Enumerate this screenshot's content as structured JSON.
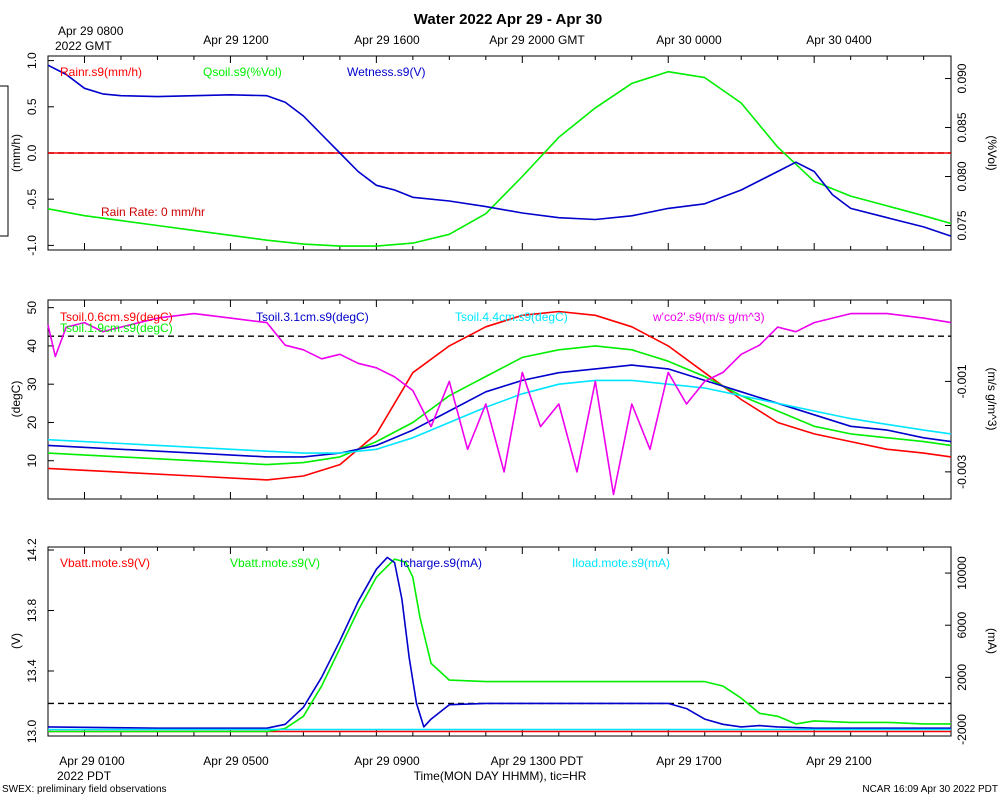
{
  "header": {
    "title": "Water 2022 Apr 29 - Apr 30",
    "gmt_tick_first_line1": "Apr 29 0800",
    "gmt_tick_first_line2": "2022 GMT",
    "gmt_ticks": [
      "Apr 29 1200",
      "Apr 29 1600",
      "Apr 29 2000 GMT",
      "Apr 30 0000",
      "Apr 30 0400"
    ]
  },
  "footer": {
    "left": "SWEX: preliminary field observations",
    "right": "NCAR 16:09 Apr 30 2022 PDT",
    "xlabel": "Time(MON DAY HHMM), tic=HR",
    "pdt_ticks": [
      "Apr 29 0100",
      "Apr 29 0500",
      "Apr 29 0900",
      "Apr 29 1300 PDT",
      "Apr 29 1700",
      "Apr 29 2100"
    ],
    "year_label": "2022 PDT"
  },
  "colors": {
    "red": "#ff0000",
    "green": "#00ee00",
    "blue": "#0000cc",
    "cyan": "#00e5ff",
    "magenta": "#ee00ee"
  },
  "chart_data": [
    {
      "type": "line",
      "panel": "water",
      "title": "Water 2022 Apr 29 - Apr 30",
      "x_unit": "hours since Apr 29 0000 PDT",
      "xlim": [
        0.0,
        24.75
      ],
      "left_axis": {
        "label": "(mm/h)",
        "ylim": [
          -1.05,
          1.05
        ],
        "ticks": [
          -1.0,
          -0.5,
          0.0,
          0.5,
          1.0
        ]
      },
      "right_axis": {
        "label": "(%Vol)",
        "ylim": [
          0.0725,
          0.0923
        ],
        "ticks": [
          0.075,
          0.08,
          0.085,
          0.09
        ]
      },
      "annotation": "Rain Rate: 0 mm/hr",
      "reference_line_left": 0.0,
      "series": [
        {
          "name": "Rainr.s9(mm/h)",
          "axis": "left",
          "color": "#ff0000",
          "x": [
            0.0,
            24.75
          ],
          "y": [
            0.0,
            0.0
          ]
        },
        {
          "name": "Qsoil.s9(%Vol)",
          "axis": "right",
          "color": "#00ee00",
          "x": [
            0.0,
            1,
            2,
            3,
            4,
            5,
            6,
            7,
            8,
            9,
            10,
            11,
            12,
            13,
            14,
            15,
            16,
            17,
            18,
            19,
            20,
            21,
            22,
            23,
            24,
            24.75
          ],
          "y": [
            0.0767,
            0.076,
            0.0755,
            0.075,
            0.0745,
            0.074,
            0.0735,
            0.0731,
            0.0729,
            0.0729,
            0.0732,
            0.0741,
            0.0762,
            0.08,
            0.084,
            0.087,
            0.0895,
            0.0907,
            0.0901,
            0.0875,
            0.083,
            0.0795,
            0.078,
            0.077,
            0.076,
            0.0752
          ]
        },
        {
          "name": "Wetness.s9(V)",
          "axis": "left",
          "color": "#0000cc",
          "x": [
            0.0,
            0.5,
            1,
            1.5,
            2,
            3,
            4,
            5,
            6,
            6.5,
            7,
            7.5,
            8,
            8.5,
            9,
            9.5,
            10,
            11,
            12,
            13,
            14,
            15,
            16,
            17,
            18,
            19,
            20,
            20.5,
            21,
            21.5,
            22,
            23,
            24,
            24.75
          ],
          "y": [
            0.95,
            0.85,
            0.7,
            0.64,
            0.62,
            0.61,
            0.62,
            0.63,
            0.62,
            0.55,
            0.4,
            0.2,
            0.0,
            -0.2,
            -0.35,
            -0.4,
            -0.48,
            -0.52,
            -0.58,
            -0.65,
            -0.7,
            -0.72,
            -0.68,
            -0.6,
            -0.55,
            -0.4,
            -0.2,
            -0.1,
            -0.2,
            -0.45,
            -0.6,
            -0.7,
            -0.8,
            -0.9
          ]
        }
      ]
    },
    {
      "type": "line",
      "panel": "soil temperature",
      "x_unit": "hours since Apr 29 0000 PDT",
      "xlim": [
        0.0,
        24.75
      ],
      "left_axis": {
        "label": "(degC)",
        "ylim": [
          0,
          52
        ],
        "ticks": [
          10,
          20,
          30,
          40,
          50
        ]
      },
      "right_axis": {
        "label": "(m/s g/m^3)",
        "ylim": [
          -0.0036,
          0.0008
        ],
        "ticks": [
          -0.003,
          -0.001
        ]
      },
      "reference_line_right": 0.0,
      "series": [
        {
          "name": "Tsoil.0.6cm.s9(degC)",
          "axis": "left",
          "color": "#ff0000",
          "x": [
            0.0,
            2,
            4,
            6,
            7,
            8,
            9,
            9.5,
            10,
            11,
            12,
            13,
            14,
            15,
            16,
            17,
            18,
            19,
            20,
            21,
            22,
            23,
            24,
            24.75
          ],
          "y": [
            8,
            7,
            6,
            5,
            6,
            9,
            17,
            25,
            33,
            40,
            45,
            48,
            49,
            48,
            45,
            40,
            33,
            26,
            20,
            17,
            15,
            13,
            12,
            11
          ]
        },
        {
          "name": "Tsoil.1.9cm.s9(degC)",
          "axis": "left",
          "color": "#00ee00",
          "x": [
            0.0,
            2,
            4,
            6,
            7,
            8,
            9,
            10,
            11,
            12,
            13,
            14,
            15,
            16,
            17,
            18,
            19,
            20,
            21,
            22,
            23,
            24,
            24.75
          ],
          "y": [
            12,
            11,
            10,
            9,
            9.5,
            11,
            15,
            20,
            27,
            32,
            37,
            39,
            40,
            39,
            36,
            32,
            27,
            23,
            19,
            17,
            16,
            15,
            14
          ]
        },
        {
          "name": "Tsoil.3.1cm.s9(degC)",
          "axis": "left",
          "color": "#0000cc",
          "x": [
            0.0,
            2,
            4,
            6,
            7,
            8,
            9,
            10,
            11,
            12,
            13,
            14,
            15,
            16,
            17,
            18,
            19,
            20,
            21,
            22,
            23,
            24,
            24.75
          ],
          "y": [
            14,
            13,
            12,
            11,
            11,
            12,
            14,
            18,
            23,
            28,
            31,
            33,
            34,
            35,
            34,
            31,
            28,
            25,
            22,
            19,
            18,
            16,
            15
          ]
        },
        {
          "name": "Tsoil.4.4cm.s9(degC)",
          "axis": "left",
          "color": "#00e5ff",
          "x": [
            0.0,
            2,
            4,
            6,
            7,
            8,
            9,
            10,
            11,
            12,
            13,
            14,
            15,
            16,
            17,
            18,
            19,
            20,
            21,
            22,
            23,
            24,
            24.75
          ],
          "y": [
            15.5,
            14.5,
            13.5,
            12.5,
            12,
            12,
            13,
            16,
            20,
            24,
            27.5,
            30,
            31,
            31,
            30,
            29,
            27,
            25,
            23,
            21,
            19.5,
            18,
            17
          ]
        },
        {
          "name": "w'co2'.s9(m/s g/m^3)",
          "axis": "right",
          "color": "#ee00ee",
          "x": [
            0.0,
            0.2,
            0.5,
            1,
            1.5,
            2,
            3,
            4,
            5,
            6,
            6.5,
            7,
            7.5,
            8,
            8.5,
            9,
            9.5,
            10,
            10.5,
            11,
            11.5,
            12,
            12.5,
            13,
            13.5,
            14,
            14.5,
            15,
            15.5,
            16,
            16.5,
            17,
            17.5,
            18,
            18.5,
            19,
            19.5,
            20,
            20.5,
            21,
            22,
            23,
            24,
            24.75
          ],
          "y": [
            0.00025,
            -0.00045,
            0.0002,
            0.0003,
            0.0001,
            0.0002,
            0.0004,
            0.0005,
            0.0004,
            0.0003,
            -0.0002,
            -0.0003,
            -0.0005,
            -0.0004,
            -0.0006,
            -0.0007,
            -0.0009,
            -0.0012,
            -0.002,
            -0.001,
            -0.0025,
            -0.0015,
            -0.003,
            -0.0008,
            -0.002,
            -0.0015,
            -0.003,
            -0.001,
            -0.0035,
            -0.0015,
            -0.0025,
            -0.0008,
            -0.0015,
            -0.001,
            -0.0008,
            -0.0004,
            -0.0002,
            0.0002,
            0.0001,
            0.0003,
            0.0005,
            0.0005,
            0.0004,
            0.0003
          ]
        }
      ]
    },
    {
      "type": "line",
      "panel": "mote power",
      "x_unit": "hours since Apr 29 0000 PDT",
      "xlim": [
        0.0,
        24.75
      ],
      "xlabel": "Time(MON DAY HHMM), tic=HR",
      "left_axis": {
        "label": "(V)",
        "ylim": [
          12.97,
          14.22
        ],
        "ticks": [
          13.0,
          13.4,
          13.8,
          14.2
        ]
      },
      "right_axis": {
        "label": "(mA)",
        "ylim": [
          -2500,
          12000
        ],
        "ticks": [
          -2000,
          2000,
          6000,
          10000
        ]
      },
      "reference_line_right": 0,
      "series": [
        {
          "name": "Vbatt.mote.s9(V)",
          "axis": "left",
          "color": "#ff0000",
          "x": [
            0.0,
            24.75
          ],
          "y": [
            13.0,
            13.0
          ]
        },
        {
          "name": "Vbatt.mote.s9(V)",
          "axis": "left",
          "color": "#00ee00",
          "x": [
            0.0,
            3,
            6,
            6.5,
            7,
            7.5,
            8,
            8.5,
            9,
            9.5,
            9.8,
            10,
            10.2,
            10.5,
            11,
            12,
            13,
            14,
            15,
            16,
            17,
            18,
            18.5,
            19,
            19.5,
            20,
            20.5,
            21,
            22,
            23,
            24,
            24.75
          ],
          "y": [
            13.0,
            13.0,
            13.0,
            13.02,
            13.1,
            13.3,
            13.55,
            13.8,
            14.02,
            14.14,
            14.12,
            14.02,
            13.75,
            13.45,
            13.34,
            13.33,
            13.33,
            13.33,
            13.33,
            13.33,
            13.33,
            13.33,
            13.3,
            13.22,
            13.12,
            13.1,
            13.05,
            13.07,
            13.06,
            13.06,
            13.05,
            13.05
          ]
        },
        {
          "name": "Icharge.s9(mA)",
          "axis": "right",
          "color": "#0000cc",
          "x": [
            0.0,
            3,
            6,
            6.5,
            7,
            7.5,
            8,
            8.5,
            9,
            9.3,
            9.5,
            9.7,
            9.9,
            10.1,
            10.3,
            10.5,
            11,
            12,
            13,
            14,
            15,
            16,
            17,
            17.5,
            18,
            18.5,
            19,
            19.5,
            20,
            21,
            22,
            23,
            24,
            24.75
          ],
          "y": [
            -1800,
            -1900,
            -1900,
            -1600,
            -300,
            2000,
            4800,
            7800,
            10300,
            11200,
            10800,
            8000,
            3500,
            0,
            -1800,
            -1200,
            -100,
            0,
            0,
            0,
            0,
            0,
            0,
            -400,
            -1200,
            -1600,
            -1800,
            -1700,
            -1800,
            -1900,
            -1900,
            -1900,
            -1900,
            -1900
          ]
        },
        {
          "name": "Iload.mote.s9(mA)",
          "axis": "right",
          "color": "#00e5ff",
          "x": [
            0.0,
            24.75
          ],
          "y": [
            -2000,
            -2000
          ]
        }
      ]
    }
  ]
}
